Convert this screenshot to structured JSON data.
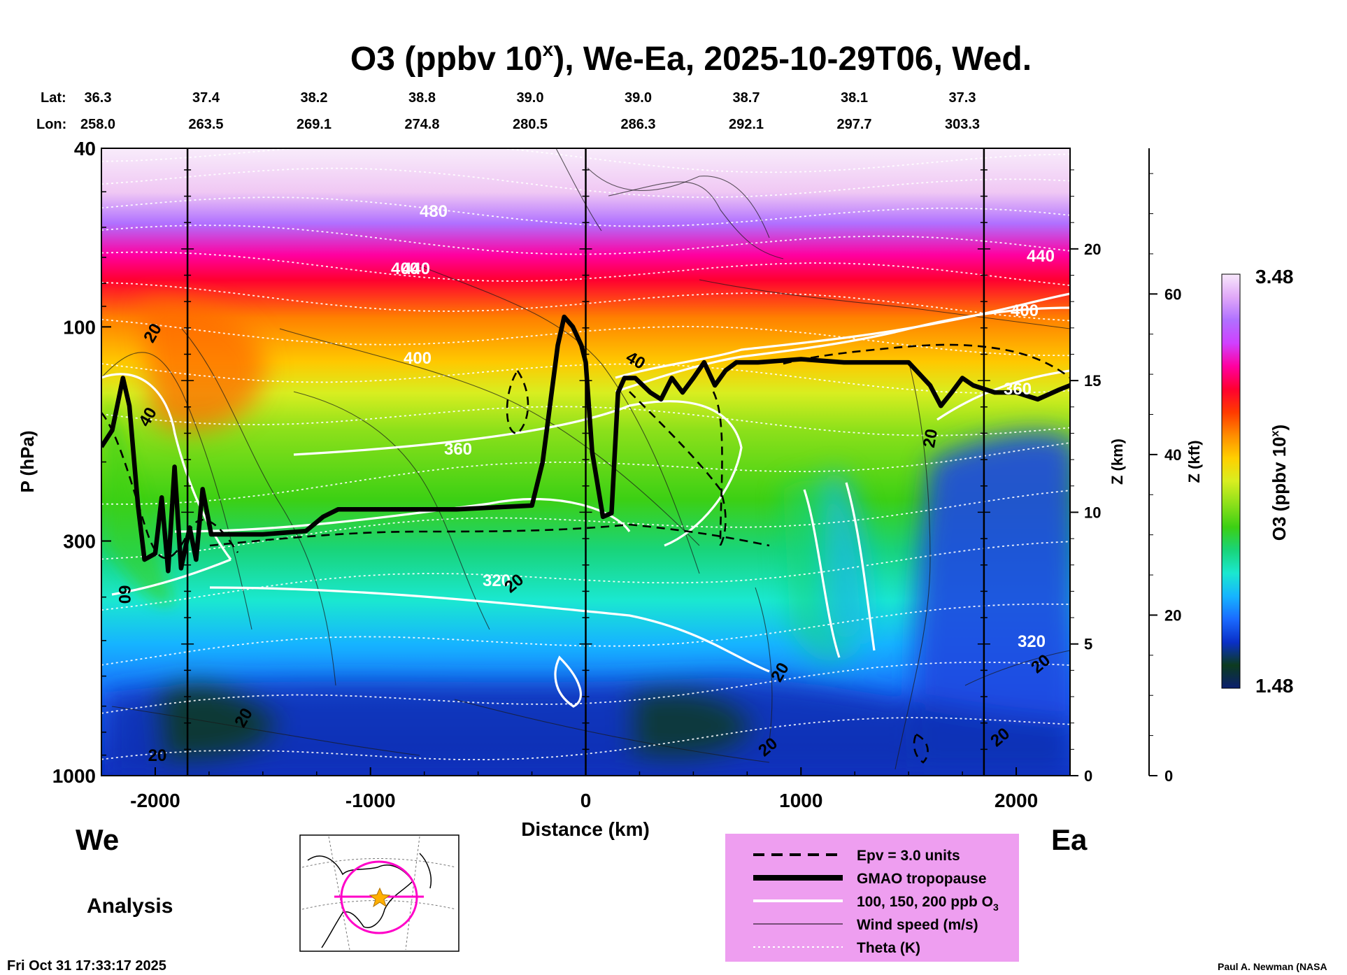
{
  "chart_data": {
    "type": "heatmap",
    "title_prefix": "O3 (ppbv 10",
    "title_sup": "x",
    "title_suffix": "), We-Ea, 2025-10-29T06, Wed.",
    "lat_label": "Lat:",
    "lon_label": "Lon:",
    "lats": [
      "36.3",
      "37.4",
      "38.2",
      "38.8",
      "39.0",
      "39.0",
      "38.7",
      "38.1",
      "37.3"
    ],
    "lons": [
      "258.0",
      "263.5",
      "269.1",
      "274.8",
      "280.5",
      "286.3",
      "292.1",
      "297.7",
      "303.3"
    ],
    "xlabel": "Distance (km)",
    "ylabel": "P (hPa)",
    "z_km_label": "Z (km)",
    "z_kft_label": "Z (kft)",
    "xlim": [
      -2250,
      2250
    ],
    "ylim": [
      1000,
      40
    ],
    "x_ticks": [
      -2000,
      -1000,
      0,
      1000,
      2000
    ],
    "p_ticks": [
      40,
      100,
      300,
      1000
    ],
    "z_km_ticks": [
      0,
      5,
      10,
      15,
      20
    ],
    "z_kft_ticks": [
      0,
      20,
      40,
      60
    ],
    "colorbar_label_prefix": "O3 (ppbv 10",
    "colorbar_label_sup": "x",
    "colorbar_label_suffix": ")",
    "colorbar_min": "1.48",
    "colorbar_max": "3.48",
    "colorbar_colors": [
      "#0b1f6e",
      "#0d3b1f",
      "#0a30c8",
      "#1a6aff",
      "#16b4ff",
      "#1ae8d0",
      "#19d47a",
      "#3cd014",
      "#8ce01a",
      "#d8ee20",
      "#ffd000",
      "#ff8c00",
      "#ff3a00",
      "#ff0030",
      "#ff00a0",
      "#d040ff",
      "#b070ff",
      "#e0a8f8",
      "#f8e8fb"
    ],
    "west_label": "We",
    "east_label": "Ea",
    "analysis_label": "Analysis",
    "theta_labels": [
      "480",
      "440",
      "440",
      "400",
      "400",
      "400",
      "360",
      "360",
      "320",
      "320"
    ],
    "wind_labels": [
      "20",
      "40",
      "60",
      "20",
      "20",
      "20",
      "40",
      "20",
      "20",
      "20",
      "20",
      "20"
    ],
    "legend": [
      {
        "label": "Epv = 3.0 units",
        "style": "dashed"
      },
      {
        "label": "GMAO tropopause",
        "style": "thick"
      },
      {
        "label": "100, 150, 200 ppb O",
        "sub": "3",
        "style": "white"
      },
      {
        "label": "Wind speed (m/s)",
        "style": "thin"
      },
      {
        "label": "Theta (K)",
        "style": "dotted"
      }
    ],
    "legend_bg": "#ee9ef0",
    "tropopause": {
      "x": [
        -2250,
        -2200,
        -2150,
        -2120,
        -2080,
        -2050,
        -2000,
        -1970,
        -1940,
        -1910,
        -1880,
        -1840,
        -1810,
        -1780,
        -1740,
        -1700,
        -1650,
        -1500,
        -1300,
        -1220,
        -1150,
        -1000,
        -600,
        -250,
        -200,
        -130,
        -100,
        -60,
        -20,
        0,
        30,
        80,
        120,
        150,
        180,
        230,
        300,
        350,
        400,
        450,
        500,
        550,
        600,
        650,
        700,
        800,
        1000,
        1200,
        1500,
        1600,
        1650,
        1700,
        1750,
        1800,
        1900,
        2000,
        2100,
        2200,
        2250
      ],
      "p": [
        185,
        170,
        130,
        150,
        250,
        330,
        320,
        240,
        350,
        205,
        345,
        280,
        330,
        230,
        290,
        290,
        290,
        290,
        285,
        265,
        255,
        255,
        255,
        250,
        200,
        110,
        95,
        100,
        110,
        120,
        190,
        265,
        260,
        140,
        130,
        130,
        140,
        145,
        130,
        140,
        130,
        120,
        135,
        125,
        120,
        120,
        118,
        120,
        120,
        135,
        150,
        140,
        130,
        135,
        140,
        140,
        145,
        138,
        135
      ]
    }
  },
  "footer": {
    "timestamp": "Fri Oct 31 17:33:17 2025",
    "credit": "Paul A. Newman (NASA"
  }
}
